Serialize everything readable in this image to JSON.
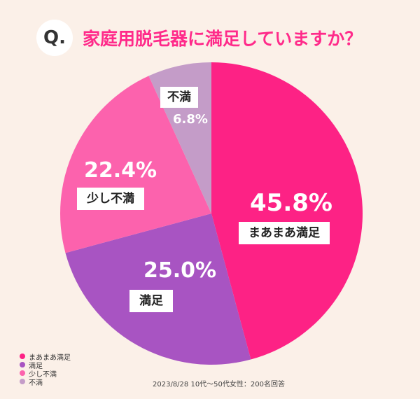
{
  "header": {
    "q_mark": "Q.",
    "title": "家庭用脱毛器に満足していますか？"
  },
  "chart_data": {
    "type": "pie",
    "slices": [
      {
        "name": "まあまあ満足",
        "label": "45.8%",
        "value": 45.8,
        "color": "#fd2285"
      },
      {
        "name": "満足",
        "label": "25.0%",
        "value": 25.0,
        "color": "#a854c2"
      },
      {
        "name": "少し不満",
        "label": "22.4%",
        "value": 22.4,
        "color": "#fc62ad"
      },
      {
        "name": "不満",
        "label": "6.8%",
        "value": 6.8,
        "color": "#c49cc8"
      }
    ],
    "legend_placement": "bottom-left"
  },
  "footnote": "2023/8/28 10代〜50代女性：200名回答"
}
